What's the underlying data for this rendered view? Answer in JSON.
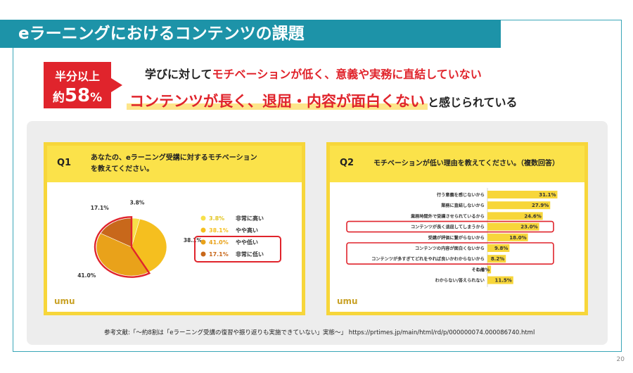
{
  "slide": {
    "title": "eラーニングにおけるコンテンツの課題",
    "badge_line1": "半分以上",
    "badge_prefix": "約",
    "badge_value": "58",
    "badge_unit": "%",
    "line1_red": "学びに対してモチベーションが低く、",
    "line1_red_b": "意義や実務に直結していない",
    "line1_black": "学びに対して",
    "line1_red_a": "モチベーションが低く、",
    "line2_highlight": "コンテンツが長く、退屈・内容が面白くない",
    "line2_rest": "と感じられている",
    "reference": "参考文献:「〜約8割は「eラーニング受講の復習や振り返りも実施できていない」実態〜」 https://prtimes.jp/main/html/rd/p/000000074.000086740.html",
    "page_number": "20"
  },
  "colors": {
    "accent": "#1d93a8",
    "red": "#e0242c",
    "yellow": "#fbe24a",
    "bar": "#f7d63a"
  },
  "logo": "umu",
  "chart_data": [
    {
      "type": "pie",
      "question_label": "Q1",
      "title": "あなたの、eラーニング受講に対するモチベーションを教えてください。",
      "categories": [
        "非常に高い",
        "やや高い",
        "やや低い",
        "非常に低い"
      ],
      "values": [
        3.8,
        38.1,
        41.0,
        17.1
      ],
      "value_labels": [
        "3.8%",
        "38.1%",
        "41.0%",
        "17.1%"
      ],
      "colors": [
        "#f7e04a",
        "#f5bf1f",
        "#e9a21a",
        "#c8681b"
      ],
      "legend_placement": "right",
      "highlighted": [
        "やや低い",
        "非常に低い"
      ]
    },
    {
      "type": "bar",
      "orientation": "horizontal",
      "question_label": "Q2",
      "title": "モチベーションが低い理由を教えてください。（複数回答）",
      "categories": [
        "行う意義を感じないから",
        "業務に直結しないから",
        "業務時間外で受講させられているから",
        "コンテンツが長く退屈してしまうから",
        "受講が評価に繋がらないから",
        "コンテンツの内容が面白くないから",
        "コンテンツが多すぎてどれをやれば良いかわからないから",
        "その他",
        "わからない/答えられない"
      ],
      "values": [
        31.1,
        27.9,
        24.6,
        23.0,
        18.0,
        9.8,
        8.2,
        1.6,
        11.5
      ],
      "value_labels": [
        "31.1%",
        "27.9%",
        "24.6%",
        "23.0%",
        "18.0%",
        "9.8%",
        "8.2%",
        "1.6%",
        "11.5%"
      ],
      "xlim": [
        0,
        35
      ],
      "highlighted": [
        "コンテンツが長く退屈してしまうから",
        "コンテンツの内容が面白くないから",
        "コンテンツが多すぎてどれをやれば良いかわからないから"
      ]
    }
  ]
}
